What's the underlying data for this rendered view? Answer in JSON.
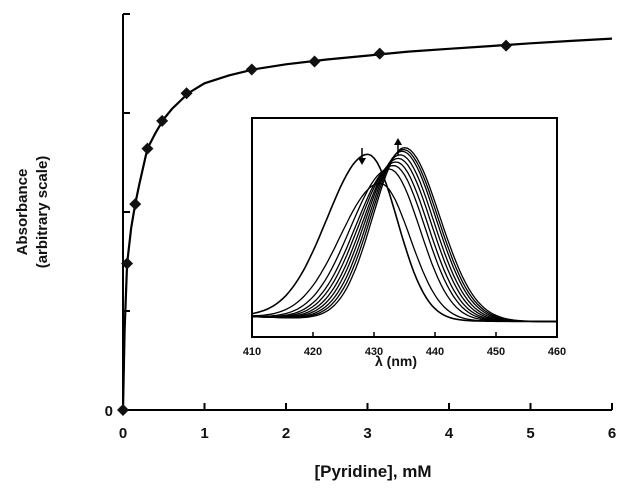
{
  "chart_data": [
    {
      "type": "line",
      "xlabel": "[Pyridine],  mM",
      "ylabel": [
        "Absorbance",
        "(arbitrary    scale)"
      ],
      "xlim": [
        0,
        6
      ],
      "x_ticks": [
        0,
        1,
        2,
        3,
        4,
        5,
        6
      ],
      "x_tick_labels": [
        "0",
        "1",
        "2",
        "3",
        "4",
        "5",
        "6"
      ],
      "ylim": [
        0,
        1.0
      ],
      "y_ticks": [
        0,
        0.25,
        0.5,
        0.75,
        1.0
      ],
      "y_tick_labels": [
        "0",
        "",
        "",
        "",
        ""
      ],
      "grid": false,
      "series": [
        {
          "marker": "diamond",
          "color": "#111111",
          "x": [
            0.0,
            0.05,
            0.15,
            0.3,
            0.48,
            0.78,
            1.58,
            2.35,
            3.15,
            4.7
          ],
          "y": [
            0.0,
            0.37,
            0.52,
            0.66,
            0.73,
            0.8,
            0.86,
            0.88,
            0.9,
            0.92
          ]
        }
      ],
      "fit_curve": {
        "x": [
          0,
          0.02,
          0.05,
          0.1,
          0.15,
          0.2,
          0.3,
          0.4,
          0.5,
          0.6,
          0.8,
          1.0,
          1.3,
          1.6,
          2.0,
          2.5,
          3.0,
          3.5,
          4.0,
          4.5,
          5.0,
          5.5,
          6.0
        ],
        "y": [
          0.0,
          0.2,
          0.37,
          0.46,
          0.52,
          0.57,
          0.66,
          0.7,
          0.735,
          0.76,
          0.8,
          0.825,
          0.845,
          0.86,
          0.873,
          0.885,
          0.895,
          0.905,
          0.912,
          0.919,
          0.926,
          0.932,
          0.938
        ]
      }
    },
    {
      "type": "line",
      "xlabel": "λ (nm)",
      "xlim": [
        410,
        460
      ],
      "x_ticks": [
        410,
        420,
        430,
        440,
        450,
        460
      ],
      "x_tick_labels": [
        "410",
        "420",
        "430",
        "440",
        "450",
        "460"
      ],
      "grid": false,
      "annotations": [
        "arrow-down",
        "arrow-up"
      ],
      "peak_positions_nm": [
        429,
        431,
        432.5,
        433.2,
        433.6,
        434.0,
        434.3,
        434.6,
        434.8,
        435.0
      ],
      "peak_heights": [
        0.92,
        0.76,
        0.84,
        0.86,
        0.88,
        0.9,
        0.92,
        0.94,
        0.95,
        0.96
      ]
    }
  ]
}
